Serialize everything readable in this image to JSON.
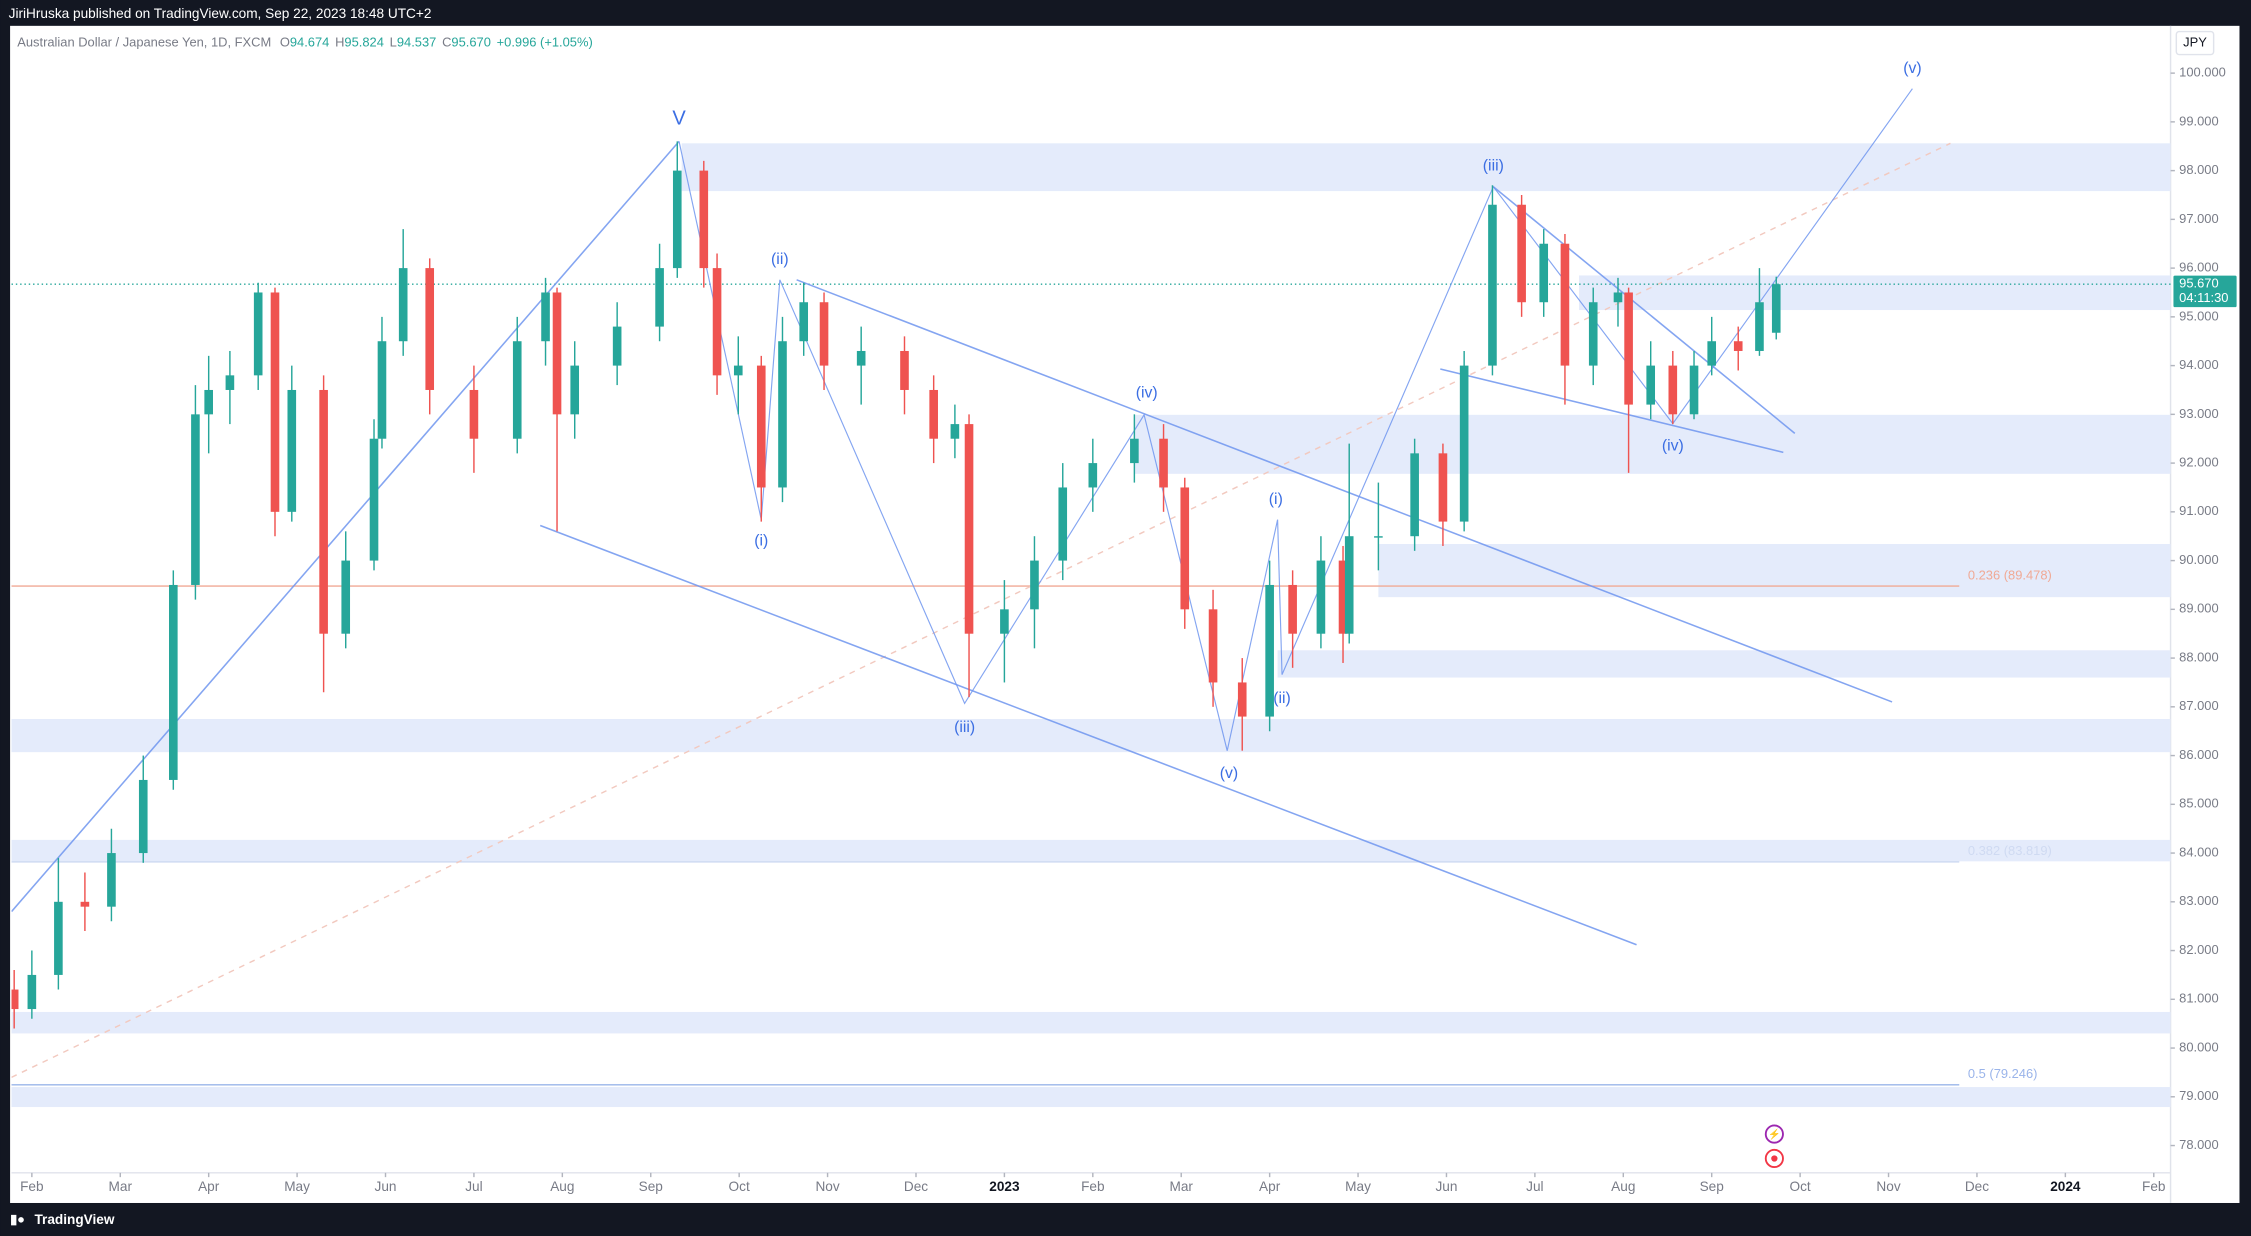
{
  "header": {
    "publisher": "JiriHruska published on TradingView.com, Sep 22, 2023 18:48 UTC+2",
    "footer": "TradingView"
  },
  "chart_data": {
    "type": "candlestick",
    "symbol": "Australian Dollar / Japanese Yen, 1D, FXCM",
    "ohlc_legend": [
      {
        "key": "O",
        "value": "94.674"
      },
      {
        "key": "H",
        "value": "95.824"
      },
      {
        "key": "L",
        "value": "94.537"
      },
      {
        "key": "C",
        "value": "95.670"
      }
    ],
    "change": "+0.996 (+1.05%)",
    "currency": "JPY",
    "up_color": "#26a69a",
    "down_color": "#ef5350",
    "x": [
      0.8,
      1.0,
      1.3,
      1.6,
      1.9,
      2.26,
      2.6,
      2.85,
      3.0,
      3.24,
      3.56,
      3.75,
      3.94,
      4.3,
      4.55,
      4.87,
      4.96,
      5.2,
      5.5,
      6.0,
      6.49,
      6.81,
      6.94,
      7.14,
      7.62,
      8.1,
      8.3,
      8.6,
      8.75,
      8.99,
      9.25,
      9.49,
      9.73,
      9.96,
      10.38,
      10.87,
      11.2,
      11.44,
      11.6,
      12.0,
      12.34,
      12.66,
      13.0,
      13.47,
      13.8,
      14.04,
      14.36,
      14.69,
      15.0,
      15.26,
      15.58,
      15.83,
      15.9,
      16.23,
      16.64,
      16.96,
      17.2,
      17.52,
      17.85,
      18.1,
      18.34,
      18.66,
      18.94,
      19.06,
      19.31,
      19.56,
      19.8,
      20.0,
      20.3,
      20.54,
      20.73
    ],
    "open": [
      81.2,
      80.8,
      81.5,
      83.0,
      82.9,
      84.0,
      85.5,
      89.5,
      93.0,
      93.5,
      93.8,
      95.5,
      91.0,
      93.5,
      88.5,
      90.0,
      92.5,
      94.5,
      96.0,
      93.5,
      92.5,
      94.5,
      95.5,
      93.0,
      94.0,
      94.8,
      96.0,
      98.0,
      96.0,
      93.8,
      94.0,
      91.5,
      94.5,
      95.3,
      94.0,
      94.3,
      93.5,
      92.5,
      92.8,
      88.5,
      89.0,
      90.0,
      91.5,
      92.0,
      92.5,
      91.5,
      89.0,
      87.5,
      86.8,
      89.5,
      88.5,
      90.0,
      88.5,
      90.5,
      90.5,
      92.2,
      90.8,
      94.0,
      97.3,
      95.3,
      96.5,
      94.0,
      95.3,
      95.5,
      93.2,
      94.0,
      93.0,
      94.0,
      94.5,
      94.3,
      94.674
    ],
    "high": [
      81.6,
      82.0,
      83.9,
      83.6,
      84.5,
      86.0,
      89.8,
      93.6,
      94.2,
      94.3,
      95.7,
      95.6,
      94.0,
      93.8,
      90.6,
      92.9,
      95.0,
      96.8,
      96.2,
      94.0,
      95.0,
      95.8,
      95.6,
      94.5,
      95.3,
      96.5,
      98.6,
      98.2,
      96.3,
      94.6,
      94.2,
      95.0,
      95.7,
      95.5,
      94.8,
      94.6,
      93.8,
      93.2,
      93.0,
      89.6,
      90.5,
      92.0,
      92.5,
      93.0,
      92.8,
      91.7,
      89.4,
      88.0,
      90.0,
      89.8,
      90.5,
      90.3,
      92.4,
      91.6,
      92.5,
      92.4,
      94.3,
      97.7,
      97.5,
      96.8,
      96.7,
      95.6,
      95.8,
      95.6,
      94.5,
      94.3,
      94.3,
      95.0,
      94.8,
      96.0,
      95.824
    ],
    "low": [
      80.4,
      80.6,
      81.2,
      82.4,
      82.6,
      83.8,
      85.3,
      89.2,
      92.2,
      92.8,
      93.5,
      90.5,
      90.8,
      87.3,
      88.2,
      89.8,
      92.3,
      94.2,
      93.0,
      91.8,
      92.2,
      94.0,
      90.6,
      92.5,
      93.6,
      94.5,
      95.8,
      95.6,
      93.4,
      93.0,
      90.8,
      91.2,
      94.2,
      93.5,
      93.2,
      93.0,
      92.0,
      92.1,
      87.2,
      87.5,
      88.2,
      89.6,
      91.0,
      91.6,
      91.0,
      88.6,
      87.0,
      86.1,
      86.5,
      87.8,
      88.2,
      87.9,
      88.3,
      89.8,
      90.2,
      90.3,
      90.6,
      93.8,
      95.0,
      95.0,
      93.2,
      93.6,
      94.8,
      91.8,
      92.9,
      92.8,
      92.9,
      93.8,
      93.9,
      94.2,
      94.537
    ],
    "close": [
      80.8,
      81.5,
      83.0,
      82.9,
      84.0,
      85.5,
      89.5,
      93.0,
      93.5,
      93.8,
      95.5,
      91.0,
      93.5,
      88.5,
      90.0,
      92.5,
      94.5,
      96.0,
      93.5,
      92.5,
      94.5,
      95.5,
      93.0,
      94.0,
      94.8,
      96.0,
      98.0,
      96.0,
      93.8,
      94.0,
      91.5,
      94.5,
      95.3,
      94.0,
      94.3,
      93.5,
      92.5,
      92.8,
      88.5,
      89.0,
      90.0,
      91.5,
      92.0,
      92.5,
      91.5,
      89.0,
      87.5,
      86.8,
      89.5,
      88.5,
      90.0,
      88.5,
      90.5,
      90.5,
      92.2,
      90.8,
      94.0,
      97.3,
      95.3,
      96.5,
      94.0,
      95.3,
      95.5,
      93.2,
      94.0,
      93.0,
      94.0,
      94.5,
      94.3,
      95.3,
      95.67
    ],
    "xlim": [
      0.77,
      25.19
    ],
    "ylim": [
      77.44,
      100.97
    ],
    "xticks": [
      {
        "value": 1,
        "label": "Feb"
      },
      {
        "value": 2,
        "label": "Mar"
      },
      {
        "value": 3,
        "label": "Apr"
      },
      {
        "value": 4,
        "label": "May"
      },
      {
        "value": 5,
        "label": "Jun"
      },
      {
        "value": 6,
        "label": "Jul"
      },
      {
        "value": 7,
        "label": "Aug"
      },
      {
        "value": 8,
        "label": "Sep"
      },
      {
        "value": 9,
        "label": "Oct"
      },
      {
        "value": 10,
        "label": "Nov"
      },
      {
        "value": 11,
        "label": "Dec"
      },
      {
        "value": 12,
        "label": "2023"
      },
      {
        "value": 13,
        "label": "Feb"
      },
      {
        "value": 14,
        "label": "Mar"
      },
      {
        "value": 15,
        "label": "Apr"
      },
      {
        "value": 16,
        "label": "May"
      },
      {
        "value": 17,
        "label": "Jun"
      },
      {
        "value": 18,
        "label": "Jul"
      },
      {
        "value": 19,
        "label": "Aug"
      },
      {
        "value": 20,
        "label": "Sep"
      },
      {
        "value": 21,
        "label": "Oct"
      },
      {
        "value": 22,
        "label": "Nov"
      },
      {
        "value": 23,
        "label": "Dec"
      },
      {
        "value": 24,
        "label": "2024"
      },
      {
        "value": 25,
        "label": "Feb"
      }
    ],
    "yticks": [
      {
        "value": 78,
        "label": "78.000"
      },
      {
        "value": 79,
        "label": "79.000"
      },
      {
        "value": 80,
        "label": "80.000"
      },
      {
        "value": 81,
        "label": "81.000"
      },
      {
        "value": 82,
        "label": "82.000"
      },
      {
        "value": 83,
        "label": "83.000"
      },
      {
        "value": 84,
        "label": "84.000"
      },
      {
        "value": 85,
        "label": "85.000"
      },
      {
        "value": 86,
        "label": "86.000"
      },
      {
        "value": 87,
        "label": "87.000"
      },
      {
        "value": 88,
        "label": "88.000"
      },
      {
        "value": 89,
        "label": "89.000"
      },
      {
        "value": 90,
        "label": "90.000"
      },
      {
        "value": 91,
        "label": "91.000"
      },
      {
        "value": 92,
        "label": "92.000"
      },
      {
        "value": 93,
        "label": "93.000"
      },
      {
        "value": 94,
        "label": "94.000"
      },
      {
        "value": 95,
        "label": "95.000"
      },
      {
        "value": 96,
        "label": "96.000"
      },
      {
        "value": 97,
        "label": "97.000"
      },
      {
        "value": 98,
        "label": "98.000"
      },
      {
        "value": 99,
        "label": "99.000"
      },
      {
        "value": 100,
        "label": "100.000"
      }
    ],
    "grid": false,
    "last_price": {
      "value": 95.67,
      "label": "95.670",
      "countdown": "04:11:30"
    },
    "zone_color": "#e4ebfb",
    "zones": [
      {
        "x0": 8.35,
        "ylow": 97.58,
        "yhigh": 98.56
      },
      {
        "x0": 18.5,
        "ylow": 95.14,
        "yhigh": 95.85
      },
      {
        "x0": 13.47,
        "ylow": 91.78,
        "yhigh": 92.99
      },
      {
        "x0": 16.23,
        "ylow": 89.25,
        "yhigh": 90.34
      },
      {
        "x0": 15.09,
        "ylow": 87.6,
        "yhigh": 88.16
      },
      {
        "x0": 0.77,
        "ylow": 86.07,
        "yhigh": 86.75
      },
      {
        "x0": 0.77,
        "ylow": 83.83,
        "yhigh": 84.27
      },
      {
        "x0": 0.77,
        "ylow": 80.3,
        "yhigh": 80.74
      },
      {
        "x0": 0.77,
        "ylow": 78.79,
        "yhigh": 79.2
      }
    ],
    "fib_xend": 22.8,
    "fib_levels": [
      {
        "value": 89.478,
        "label": "0.236 (89.478)",
        "color": "#f0a995"
      },
      {
        "value": 83.819,
        "label": "0.382 (83.819)",
        "color": "#cfdaf2"
      },
      {
        "value": 79.246,
        "label": "0.5 (79.246)",
        "color": "#9ab4ea"
      }
    ],
    "line_color": "#6f95ee",
    "lines": [
      {
        "x": [
          0.77,
          8.32
        ],
        "y": [
          82.8,
          98.6
        ]
      },
      {
        "x": [
          9.65,
          22.04
        ],
        "y": [
          95.76,
          87.1
        ]
      },
      {
        "x": [
          6.75,
          19.15
        ],
        "y": [
          90.72,
          82.12
        ]
      },
      {
        "x": [
          8.32,
          9.25,
          9.46,
          11.55,
          13.58,
          14.52,
          15.09,
          15.14,
          17.53,
          19.56,
          22.27
        ],
        "y": [
          98.6,
          90.84,
          95.76,
          87.07,
          92.99,
          86.1,
          90.84,
          87.66,
          97.67,
          92.81,
          99.68
        ]
      },
      {
        "x": [
          17.53,
          20.94
        ],
        "y": [
          97.67,
          92.61
        ]
      },
      {
        "x": [
          16.93,
          20.81
        ],
        "y": [
          93.93,
          92.22
        ]
      }
    ],
    "dashed_line": {
      "x": [
        0.77,
        22.7
      ],
      "y": [
        79.4,
        98.56
      ],
      "color": "#f2c9bf"
    },
    "annotations": [
      {
        "text": "V",
        "x": 8.32,
        "y": 99.06
      },
      {
        "text": "(i)",
        "x": 9.25,
        "y": 90.4
      },
      {
        "text": "(ii)",
        "x": 9.46,
        "y": 96.17
      },
      {
        "text": "(iii)",
        "x": 11.55,
        "y": 86.57
      },
      {
        "text": "(iv)",
        "x": 13.61,
        "y": 93.43
      },
      {
        "text": "(v)",
        "x": 14.54,
        "y": 85.63
      },
      {
        "text": "(i)",
        "x": 15.07,
        "y": 91.25
      },
      {
        "text": "(ii)",
        "x": 15.14,
        "y": 87.16
      },
      {
        "text": "(iii)",
        "x": 17.53,
        "y": 98.09
      },
      {
        "text": "(iv)",
        "x": 19.56,
        "y": 92.34
      },
      {
        "text": "(v)",
        "x": 22.27,
        "y": 100.09
      }
    ]
  }
}
